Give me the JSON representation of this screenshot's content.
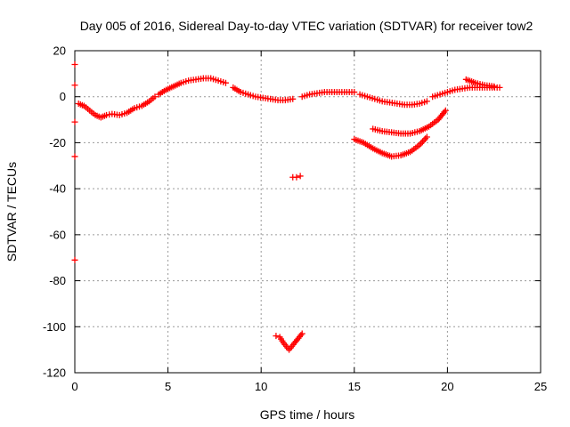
{
  "chart_data": {
    "type": "scatter",
    "title": "Day 005 of 2016, Sidereal Day-to-day VTEC variation (SDTVAR) for receiver tow2",
    "xlabel": "GPS time / hours",
    "ylabel": "SDTVAR / TECUs",
    "xlim": [
      0,
      25
    ],
    "ylim": [
      -120,
      20
    ],
    "xticks": [
      0,
      5,
      10,
      15,
      20,
      25
    ],
    "yticks": [
      20,
      0,
      -20,
      -40,
      -60,
      -80,
      -100,
      -120
    ],
    "grid": true,
    "marker": "+",
    "color": "#ff0000",
    "series": [
      {
        "name": "SDTVAR",
        "segments": [
          [
            [
              0.2,
              -3
            ],
            [
              0.5,
              -4
            ],
            [
              0.8,
              -6
            ],
            [
              1.1,
              -8
            ],
            [
              1.4,
              -9
            ],
            [
              1.7,
              -8
            ],
            [
              2.0,
              -7.5
            ],
            [
              2.4,
              -8
            ],
            [
              2.8,
              -7
            ],
            [
              3.2,
              -5
            ],
            [
              3.6,
              -4
            ],
            [
              4.0,
              -2
            ],
            [
              4.3,
              0
            ]
          ],
          [
            [
              4.5,
              1
            ],
            [
              4.9,
              3
            ],
            [
              5.3,
              4.5
            ],
            [
              5.7,
              6
            ],
            [
              6.1,
              7
            ],
            [
              6.5,
              7.5
            ],
            [
              6.9,
              8
            ],
            [
              7.3,
              8
            ],
            [
              7.7,
              7
            ],
            [
              8.1,
              6
            ]
          ],
          [
            [
              8.5,
              4
            ],
            [
              8.9,
              2
            ],
            [
              9.3,
              1
            ],
            [
              9.7,
              0
            ],
            [
              10.1,
              -0.5
            ],
            [
              10.5,
              -1
            ],
            [
              10.9,
              -1.5
            ],
            [
              11.3,
              -1.5
            ],
            [
              11.7,
              -1
            ]
          ],
          [
            [
              12.2,
              0
            ],
            [
              12.6,
              1
            ],
            [
              13.0,
              1.5
            ],
            [
              13.4,
              2
            ],
            [
              13.8,
              2
            ],
            [
              14.2,
              2
            ],
            [
              14.6,
              2
            ],
            [
              15.0,
              2
            ]
          ],
          [
            [
              15.3,
              1
            ],
            [
              15.7,
              0
            ],
            [
              16.1,
              -1
            ],
            [
              16.5,
              -2
            ],
            [
              16.9,
              -2.5
            ],
            [
              17.3,
              -3
            ],
            [
              17.7,
              -3.5
            ],
            [
              18.1,
              -3.5
            ],
            [
              18.5,
              -3
            ],
            [
              18.9,
              -2
            ]
          ],
          [
            [
              19.2,
              0
            ],
            [
              19.6,
              1
            ],
            [
              20.0,
              2
            ],
            [
              20.4,
              3
            ],
            [
              20.8,
              3.5
            ],
            [
              21.2,
              4
            ],
            [
              21.6,
              4
            ],
            [
              22.0,
              4
            ],
            [
              22.4,
              4
            ],
            [
              22.8,
              4
            ]
          ],
          [
            [
              21.0,
              7.5
            ],
            [
              21.5,
              6
            ],
            [
              22.0,
              5
            ],
            [
              22.5,
              4.5
            ]
          ],
          [
            [
              15.0,
              -18.5
            ],
            [
              15.5,
              -20
            ],
            [
              16.0,
              -22.5
            ],
            [
              16.5,
              -24.5
            ],
            [
              17.0,
              -26
            ],
            [
              17.5,
              -25.5
            ],
            [
              18.0,
              -24
            ],
            [
              18.5,
              -21
            ],
            [
              18.9,
              -17.5
            ]
          ],
          [
            [
              16.0,
              -14
            ],
            [
              16.5,
              -15
            ],
            [
              17.0,
              -15.5
            ],
            [
              17.5,
              -16
            ],
            [
              18.0,
              -16
            ],
            [
              18.5,
              -15
            ],
            [
              19.0,
              -13
            ],
            [
              19.5,
              -10
            ],
            [
              19.9,
              -6
            ]
          ],
          [
            [
              11.7,
              -35
            ],
            [
              11.9,
              -35
            ],
            [
              12.1,
              -34.5
            ]
          ],
          [
            [
              10.8,
              -104
            ],
            [
              11.0,
              -104.5
            ],
            [
              11.2,
              -107
            ],
            [
              11.5,
              -110
            ],
            [
              11.8,
              -107
            ],
            [
              12.0,
              -105
            ],
            [
              12.2,
              -103
            ]
          ],
          [
            [
              0.0,
              14
            ],
            [
              0.0,
              5
            ],
            [
              0.0,
              -11
            ],
            [
              0.0,
              -26
            ],
            [
              0.0,
              -71
            ]
          ]
        ]
      }
    ]
  }
}
